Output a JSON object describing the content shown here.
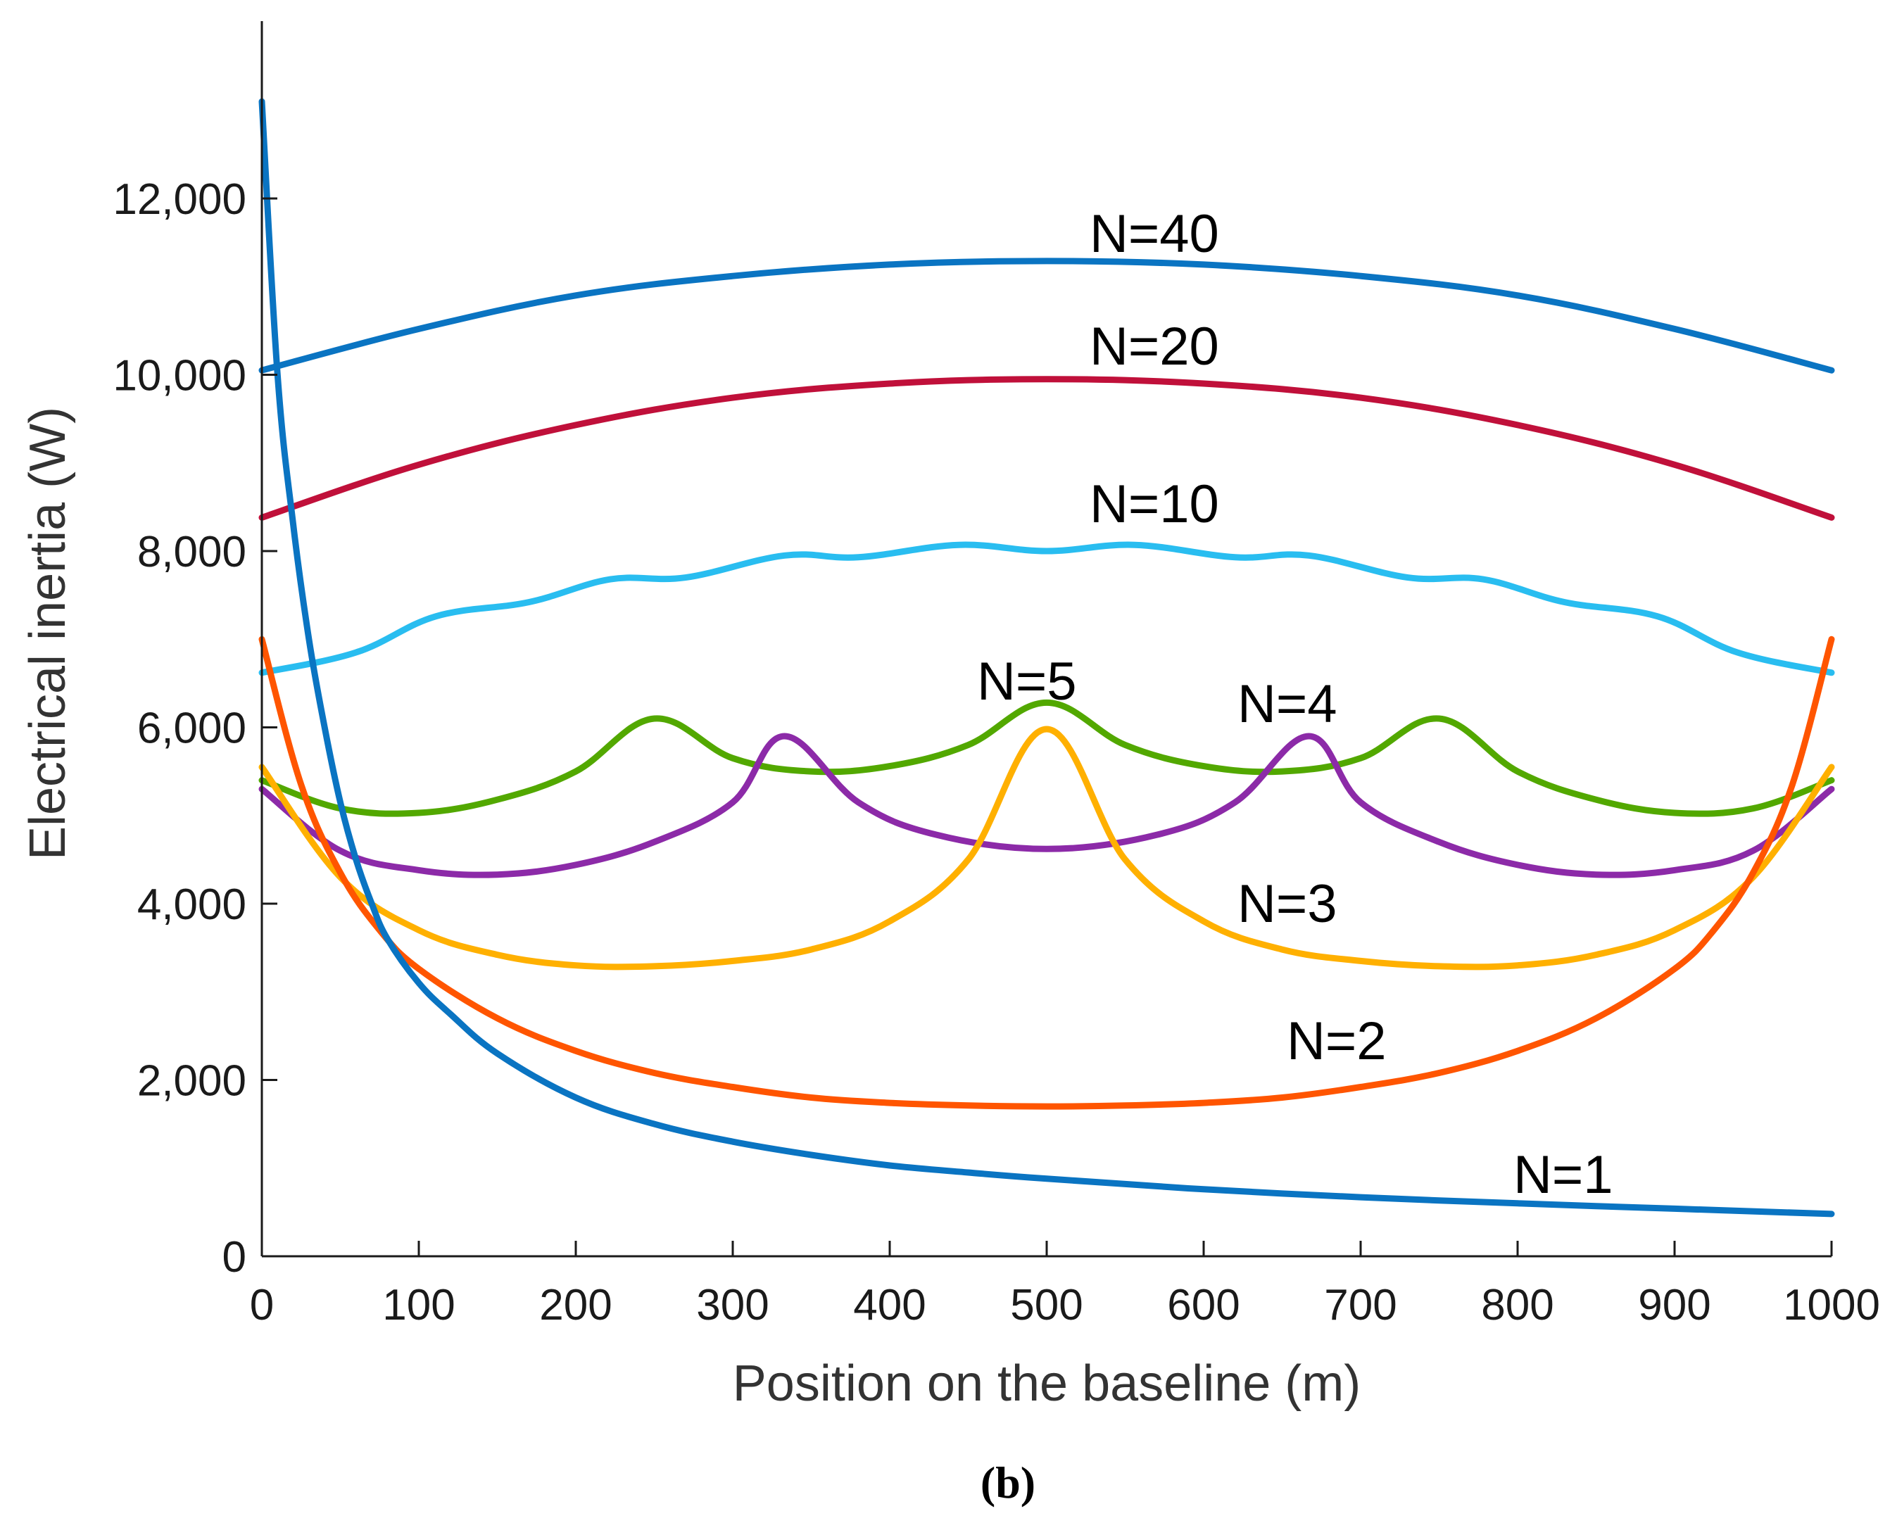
{
  "chart_data": {
    "type": "line",
    "xlabel": "Position on the baseline (m)",
    "ylabel": "Electrical inertia (W)",
    "xlim": [
      0,
      1000
    ],
    "ylim": [
      0,
      14000
    ],
    "x_ticks": [
      "0",
      "100",
      "200",
      "300",
      "400",
      "500",
      "600",
      "700",
      "800",
      "900",
      "1000"
    ],
    "y_ticks": [
      "0",
      "2,000",
      "4,000",
      "6,000",
      "8,000",
      "10,000",
      "12,000"
    ],
    "grid": false,
    "caption": "(b)",
    "series": [
      {
        "name": "N=40",
        "color": "#0a74c2",
        "points": [
          [
            0,
            10050
          ],
          [
            100,
            10520
          ],
          [
            200,
            10900
          ],
          [
            300,
            11120
          ],
          [
            400,
            11250
          ],
          [
            500,
            11290
          ],
          [
            600,
            11250
          ],
          [
            700,
            11120
          ],
          [
            800,
            10900
          ],
          [
            900,
            10520
          ],
          [
            1000,
            10050
          ]
        ]
      },
      {
        "name": "N=20",
        "color": "#c0103a",
        "points": [
          [
            0,
            8380
          ],
          [
            100,
            8980
          ],
          [
            200,
            9430
          ],
          [
            300,
            9740
          ],
          [
            400,
            9900
          ],
          [
            500,
            9950
          ],
          [
            600,
            9900
          ],
          [
            700,
            9740
          ],
          [
            800,
            9430
          ],
          [
            900,
            8980
          ],
          [
            1000,
            8380
          ]
        ]
      },
      {
        "name": "N=10",
        "color": "#29bdf0",
        "points": [
          [
            0,
            6620
          ],
          [
            60,
            6850
          ],
          [
            111,
            7260
          ],
          [
            170,
            7420
          ],
          [
            222,
            7680
          ],
          [
            270,
            7700
          ],
          [
            333,
            7950
          ],
          [
            380,
            7930
          ],
          [
            444,
            8070
          ],
          [
            500,
            8000
          ],
          [
            556,
            8070
          ],
          [
            620,
            7930
          ],
          [
            667,
            7950
          ],
          [
            730,
            7700
          ],
          [
            778,
            7680
          ],
          [
            830,
            7420
          ],
          [
            889,
            7260
          ],
          [
            940,
            6850
          ],
          [
            1000,
            6620
          ]
        ]
      },
      {
        "name": "N=5",
        "color": "#52a800",
        "points": [
          [
            0,
            5400
          ],
          [
            50,
            5080
          ],
          [
            100,
            5030
          ],
          [
            150,
            5180
          ],
          [
            200,
            5500
          ],
          [
            250,
            6100
          ],
          [
            300,
            5650
          ],
          [
            350,
            5500
          ],
          [
            400,
            5560
          ],
          [
            450,
            5800
          ],
          [
            500,
            6280
          ],
          [
            550,
            5800
          ],
          [
            600,
            5560
          ],
          [
            650,
            5500
          ],
          [
            700,
            5650
          ],
          [
            750,
            6100
          ],
          [
            800,
            5500
          ],
          [
            850,
            5180
          ],
          [
            900,
            5030
          ],
          [
            950,
            5080
          ],
          [
            1000,
            5400
          ]
        ]
      },
      {
        "name": "N=4",
        "color": "#8c2aa8",
        "points": [
          [
            0,
            5300
          ],
          [
            50,
            4600
          ],
          [
            100,
            4380
          ],
          [
            150,
            4330
          ],
          [
            200,
            4440
          ],
          [
            250,
            4700
          ],
          [
            300,
            5150
          ],
          [
            333,
            5900
          ],
          [
            380,
            5150
          ],
          [
            430,
            4780
          ],
          [
            500,
            4620
          ],
          [
            570,
            4780
          ],
          [
            620,
            5150
          ],
          [
            667,
            5900
          ],
          [
            700,
            5150
          ],
          [
            750,
            4700
          ],
          [
            800,
            4440
          ],
          [
            850,
            4330
          ],
          [
            900,
            4380
          ],
          [
            950,
            4600
          ],
          [
            1000,
            5300
          ]
        ]
      },
      {
        "name": "N=3",
        "color": "#ffb000",
        "points": [
          [
            0,
            5550
          ],
          [
            50,
            4300
          ],
          [
            100,
            3700
          ],
          [
            150,
            3420
          ],
          [
            200,
            3300
          ],
          [
            250,
            3290
          ],
          [
            300,
            3350
          ],
          [
            350,
            3480
          ],
          [
            400,
            3800
          ],
          [
            450,
            4500
          ],
          [
            500,
            5980
          ],
          [
            550,
            4500
          ],
          [
            600,
            3800
          ],
          [
            650,
            3480
          ],
          [
            700,
            3350
          ],
          [
            750,
            3290
          ],
          [
            800,
            3300
          ],
          [
            850,
            3420
          ],
          [
            900,
            3700
          ],
          [
            950,
            4300
          ],
          [
            1000,
            5550
          ]
        ]
      },
      {
        "name": "N=2",
        "color": "#ff5500",
        "points": [
          [
            0,
            7000
          ],
          [
            25,
            5350
          ],
          [
            50,
            4350
          ],
          [
            75,
            3700
          ],
          [
            100,
            3260
          ],
          [
            150,
            2700
          ],
          [
            200,
            2330
          ],
          [
            250,
            2080
          ],
          [
            300,
            1920
          ],
          [
            350,
            1800
          ],
          [
            400,
            1740
          ],
          [
            450,
            1710
          ],
          [
            500,
            1700
          ],
          [
            550,
            1710
          ],
          [
            600,
            1740
          ],
          [
            650,
            1800
          ],
          [
            700,
            1920
          ],
          [
            750,
            2080
          ],
          [
            800,
            2330
          ],
          [
            850,
            2700
          ],
          [
            900,
            3260
          ],
          [
            925,
            3700
          ],
          [
            950,
            4350
          ],
          [
            975,
            5350
          ],
          [
            1000,
            7000
          ]
        ]
      },
      {
        "name": "N=1",
        "color": "#0a74c2",
        "points": [
          [
            0,
            13100
          ],
          [
            10,
            10000
          ],
          [
            20,
            8300
          ],
          [
            30,
            7000
          ],
          [
            40,
            6000
          ],
          [
            50,
            5150
          ],
          [
            60,
            4500
          ],
          [
            70,
            4000
          ],
          [
            80,
            3600
          ],
          [
            100,
            3100
          ],
          [
            120,
            2750
          ],
          [
            150,
            2300
          ],
          [
            200,
            1800
          ],
          [
            250,
            1500
          ],
          [
            300,
            1300
          ],
          [
            350,
            1150
          ],
          [
            400,
            1030
          ],
          [
            450,
            950
          ],
          [
            500,
            880
          ],
          [
            600,
            760
          ],
          [
            700,
            670
          ],
          [
            800,
            600
          ],
          [
            900,
            540
          ],
          [
            1000,
            480
          ]
        ]
      }
    ]
  }
}
